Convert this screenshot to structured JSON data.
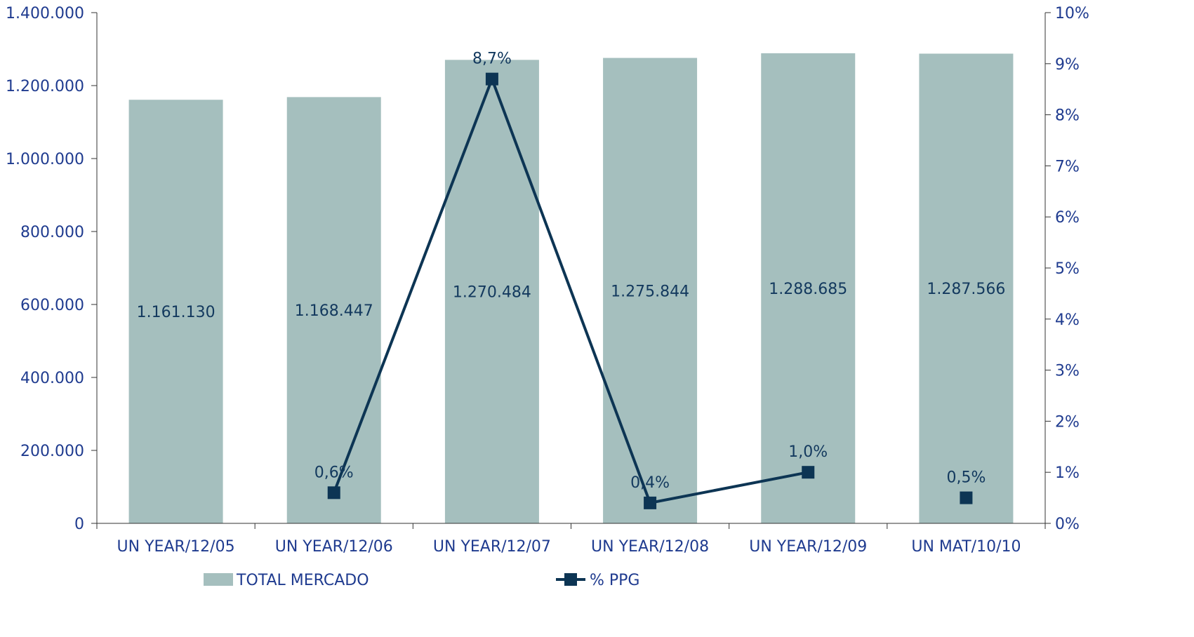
{
  "chart_data": {
    "type": "bar",
    "categories": [
      "UN YEAR/12/05",
      "UN YEAR/12/06",
      "UN YEAR/12/07",
      "UN YEAR/12/08",
      "UN YEAR/12/09",
      "UN MAT/10/10"
    ],
    "bar_values": [
      1161130,
      1168447,
      1270484,
      1275844,
      1288685,
      1287566
    ],
    "bar_labels": [
      "1.161.130",
      "1.168.447",
      "1.270.484",
      "1.275.844",
      "1.288.685",
      "1.287.566"
    ],
    "line_values": [
      null,
      0.6,
      8.7,
      0.4,
      1.0,
      0.5
    ],
    "line_labels": [
      "",
      "0,6%",
      "8,7%",
      "0,4%",
      "1,0%",
      "0,5%"
    ],
    "line_connected": [
      false,
      true,
      true,
      true,
      true,
      false
    ],
    "series": [
      {
        "name": "TOTAL MERCADO",
        "type": "bar",
        "axis": "left",
        "color": "#a5bfbe"
      },
      {
        "name": "% PPG",
        "type": "line",
        "axis": "right",
        "color": "#0d3554"
      }
    ],
    "y_left": {
      "ylim": [
        0,
        1400000
      ],
      "ticks": [
        0,
        200000,
        400000,
        600000,
        800000,
        1000000,
        1200000,
        1400000
      ],
      "tick_labels": [
        "0",
        "200.000",
        "400.000",
        "600.000",
        "800.000",
        "1.000.000",
        "1.200.000",
        "1.400.000"
      ]
    },
    "y_right": {
      "ylim": [
        0,
        10
      ],
      "ticks": [
        0,
        1,
        2,
        3,
        4,
        5,
        6,
        7,
        8,
        9,
        10
      ],
      "tick_labels": [
        "0%",
        "1%",
        "2%",
        "3%",
        "4%",
        "5%",
        "6%",
        "7%",
        "8%",
        "9%",
        "10%"
      ]
    },
    "axis_color": "#333333",
    "grid": false,
    "legend_position": "bottom"
  }
}
